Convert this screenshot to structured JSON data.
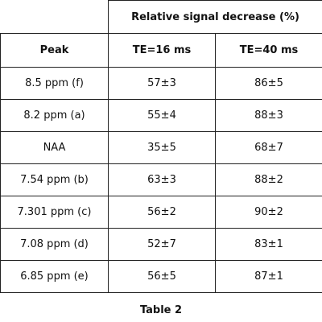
{
  "table": {
    "title": "Relative signal decrease (%)",
    "columns": [
      "Peak",
      "TE=16 ms",
      "TE=40 ms"
    ],
    "rows": [
      [
        "8.5 ppm  (f)",
        "57±3",
        "86±5"
      ],
      [
        "8.2 ppm  (a)",
        "55±4",
        "88±3"
      ],
      [
        "NAA",
        "35±5",
        "68±7"
      ],
      [
        "7.54 ppm  (b)",
        "63±3",
        "88±2"
      ],
      [
        "7.301 ppm  (c)",
        "56±2",
        "90±2"
      ],
      [
        "7.08 ppm  (d)",
        "52±7",
        "83±1"
      ],
      [
        "6.85 ppm  (e)",
        "56±5",
        "87±1"
      ]
    ],
    "caption": "Table 2"
  }
}
